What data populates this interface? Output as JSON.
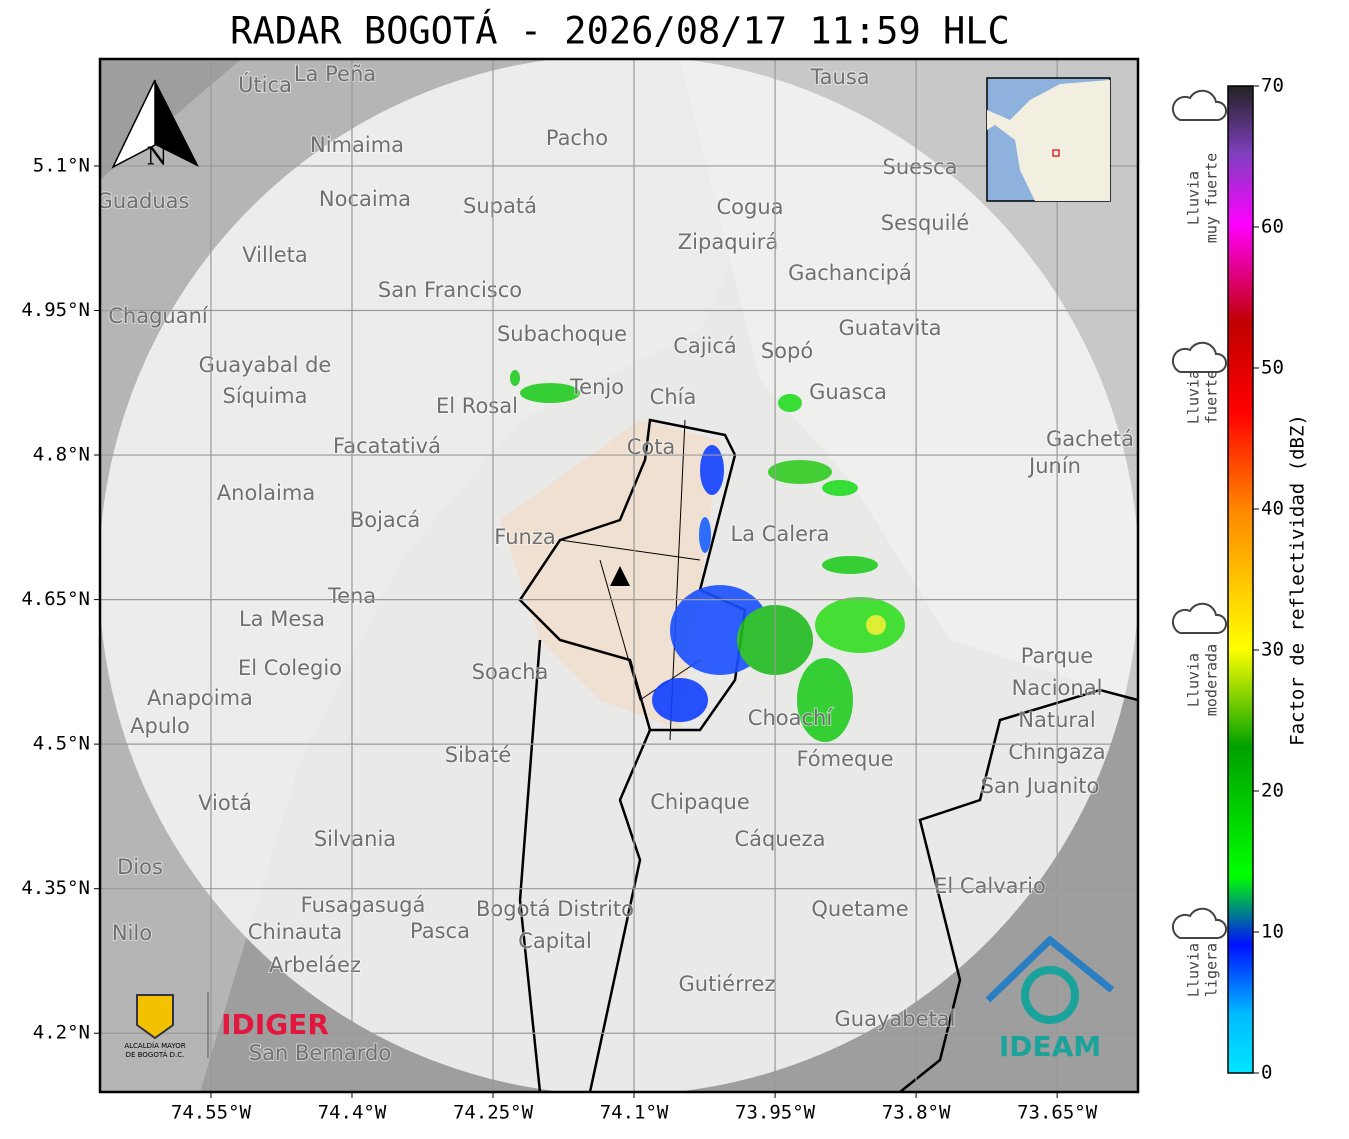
{
  "title": "RADAR BOGOTÁ - 2026/08/17 11:59 HLC",
  "map": {
    "xlim": [
      -74.668,
      -73.564
    ],
    "ylim": [
      4.139,
      5.211
    ],
    "xticks": [
      {
        "value": -74.55,
        "label": "74.55°W"
      },
      {
        "value": -74.4,
        "label": "74.4°W"
      },
      {
        "value": -74.25,
        "label": "74.25°W"
      },
      {
        "value": -74.1,
        "label": "74.1°W"
      },
      {
        "value": -73.95,
        "label": "73.95°W"
      },
      {
        "value": -73.8,
        "label": "73.8°W"
      },
      {
        "value": -73.65,
        "label": "73.65°W"
      }
    ],
    "yticks": [
      {
        "value": 5.1,
        "label": "5.1°N"
      },
      {
        "value": 4.95,
        "label": "4.95°N"
      },
      {
        "value": 4.8,
        "label": "4.8°N"
      },
      {
        "value": 4.65,
        "label": "4.65°N"
      },
      {
        "value": 4.5,
        "label": "4.5°N"
      },
      {
        "value": 4.35,
        "label": "4.35°N"
      },
      {
        "value": 4.2,
        "label": "4.2°N"
      }
    ],
    "grid": true,
    "north": "N",
    "places": [
      "La Peña",
      "Útica",
      "Tausa",
      "Pacho",
      "Nimaima",
      "Suesca",
      "Guaduas",
      "Nocaima",
      "Supatá",
      "Cogua",
      "Sesquilé",
      "Zipaquirá",
      "Villeta",
      "Gachancipá",
      "San Francisco",
      "Chaguaní",
      "Guatavita",
      "Subachoque",
      "Cajicá",
      "Sopó",
      "Guayabal de",
      "Síquima",
      "Tenjo",
      "Guasca",
      "Chía",
      "El Rosal",
      "Facatativá",
      "Cota",
      "Gachetá",
      "Junín",
      "Anolaima",
      "Bojacá",
      "Funza",
      "La Calera",
      "Tena",
      "La Mesa",
      "El Colegio",
      "Soacha",
      "Parque",
      "Nacional",
      "Natural",
      "Chingaza",
      "Anapoima",
      "Apulo",
      "Choachí",
      "Sibaté",
      "Fómeque",
      "San Juanito",
      "Chipaque",
      "Viotá",
      "Silvania",
      "Cáqueza",
      "Dios",
      "El Calvario",
      "Fusagasugá",
      "Quetame",
      "Bogotá Distrito",
      "Capital",
      "Nilo",
      "Chinauta",
      "Pasca",
      "Arbeláez",
      "Gutiérrez",
      "Guayabetal",
      "San Bernardo"
    ]
  },
  "colorbar": {
    "label": "Factor de reflectividad (dBZ)",
    "lim": [
      0,
      70
    ],
    "ticks": [
      0,
      10,
      20,
      30,
      40,
      50,
      60,
      70
    ],
    "levels": [
      [
        "Lluvia",
        "muy fuerte"
      ],
      [
        "Lluvia",
        "fuerte"
      ],
      [
        "Lluvia",
        "moderada"
      ],
      [
        "Lluvia",
        "ligera"
      ]
    ]
  },
  "logos": {
    "idiger": "IDIGER",
    "ideam": "IDEAM",
    "alcaldia": [
      "ALCALDÍA MAYOR",
      "DE BOGOTÁ D.C."
    ]
  }
}
